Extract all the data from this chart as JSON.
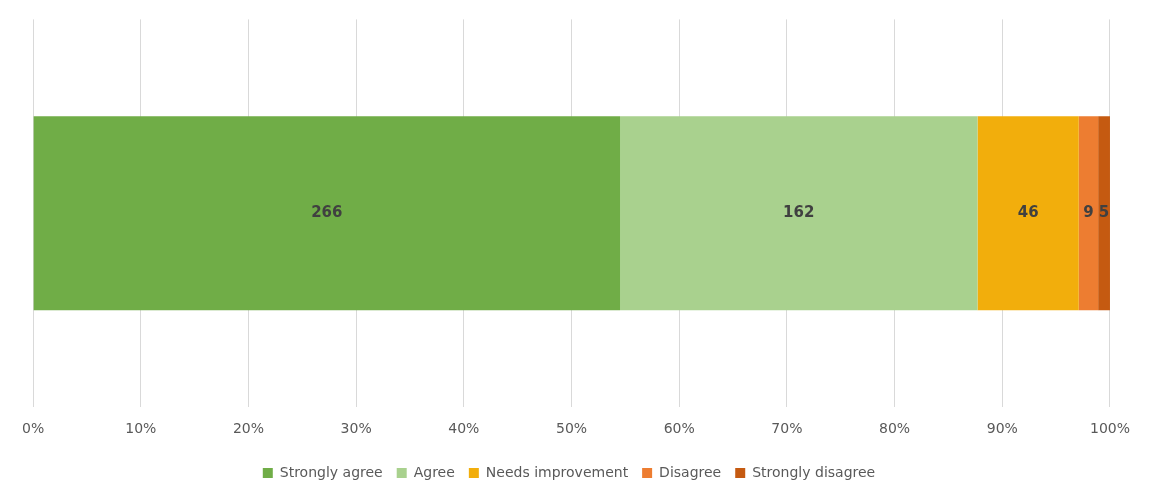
{
  "chart_data": {
    "type": "bar",
    "orientation": "horizontal",
    "stacked": true,
    "categories": [
      null
    ],
    "series": [
      {
        "name": "Strongly agree",
        "color": "#70ad47",
        "values": [
          54.5
        ]
      },
      {
        "name": "Agree",
        "color": "#a9d18e",
        "values": [
          33.2
        ]
      },
      {
        "name": "Needs improvement",
        "color": "#f2ae0c",
        "values": [
          9.4
        ]
      },
      {
        "name": "Disagree",
        "color": "#ed7d31",
        "values": [
          1.8
        ]
      },
      {
        "name": "Strongly disagree",
        "color": "#c55a11",
        "values": [
          1.1
        ]
      }
    ],
    "annotations": [
      "266",
      "162",
      "46",
      "9",
      "5"
    ],
    "xlim": [
      0,
      100
    ],
    "xticks": [
      {
        "value": 0,
        "label": "0%"
      },
      {
        "value": 10,
        "label": "10%"
      },
      {
        "value": 20,
        "label": "20%"
      },
      {
        "value": 30,
        "label": "30%"
      },
      {
        "value": 40,
        "label": "40%"
      },
      {
        "value": 50,
        "label": "50%"
      },
      {
        "value": 60,
        "label": "60%"
      },
      {
        "value": 70,
        "label": "70%"
      },
      {
        "value": 80,
        "label": "80%"
      },
      {
        "value": 90,
        "label": "90%"
      },
      {
        "value": 100,
        "label": "100%"
      }
    ],
    "grid": "x",
    "legend": "bottom"
  }
}
